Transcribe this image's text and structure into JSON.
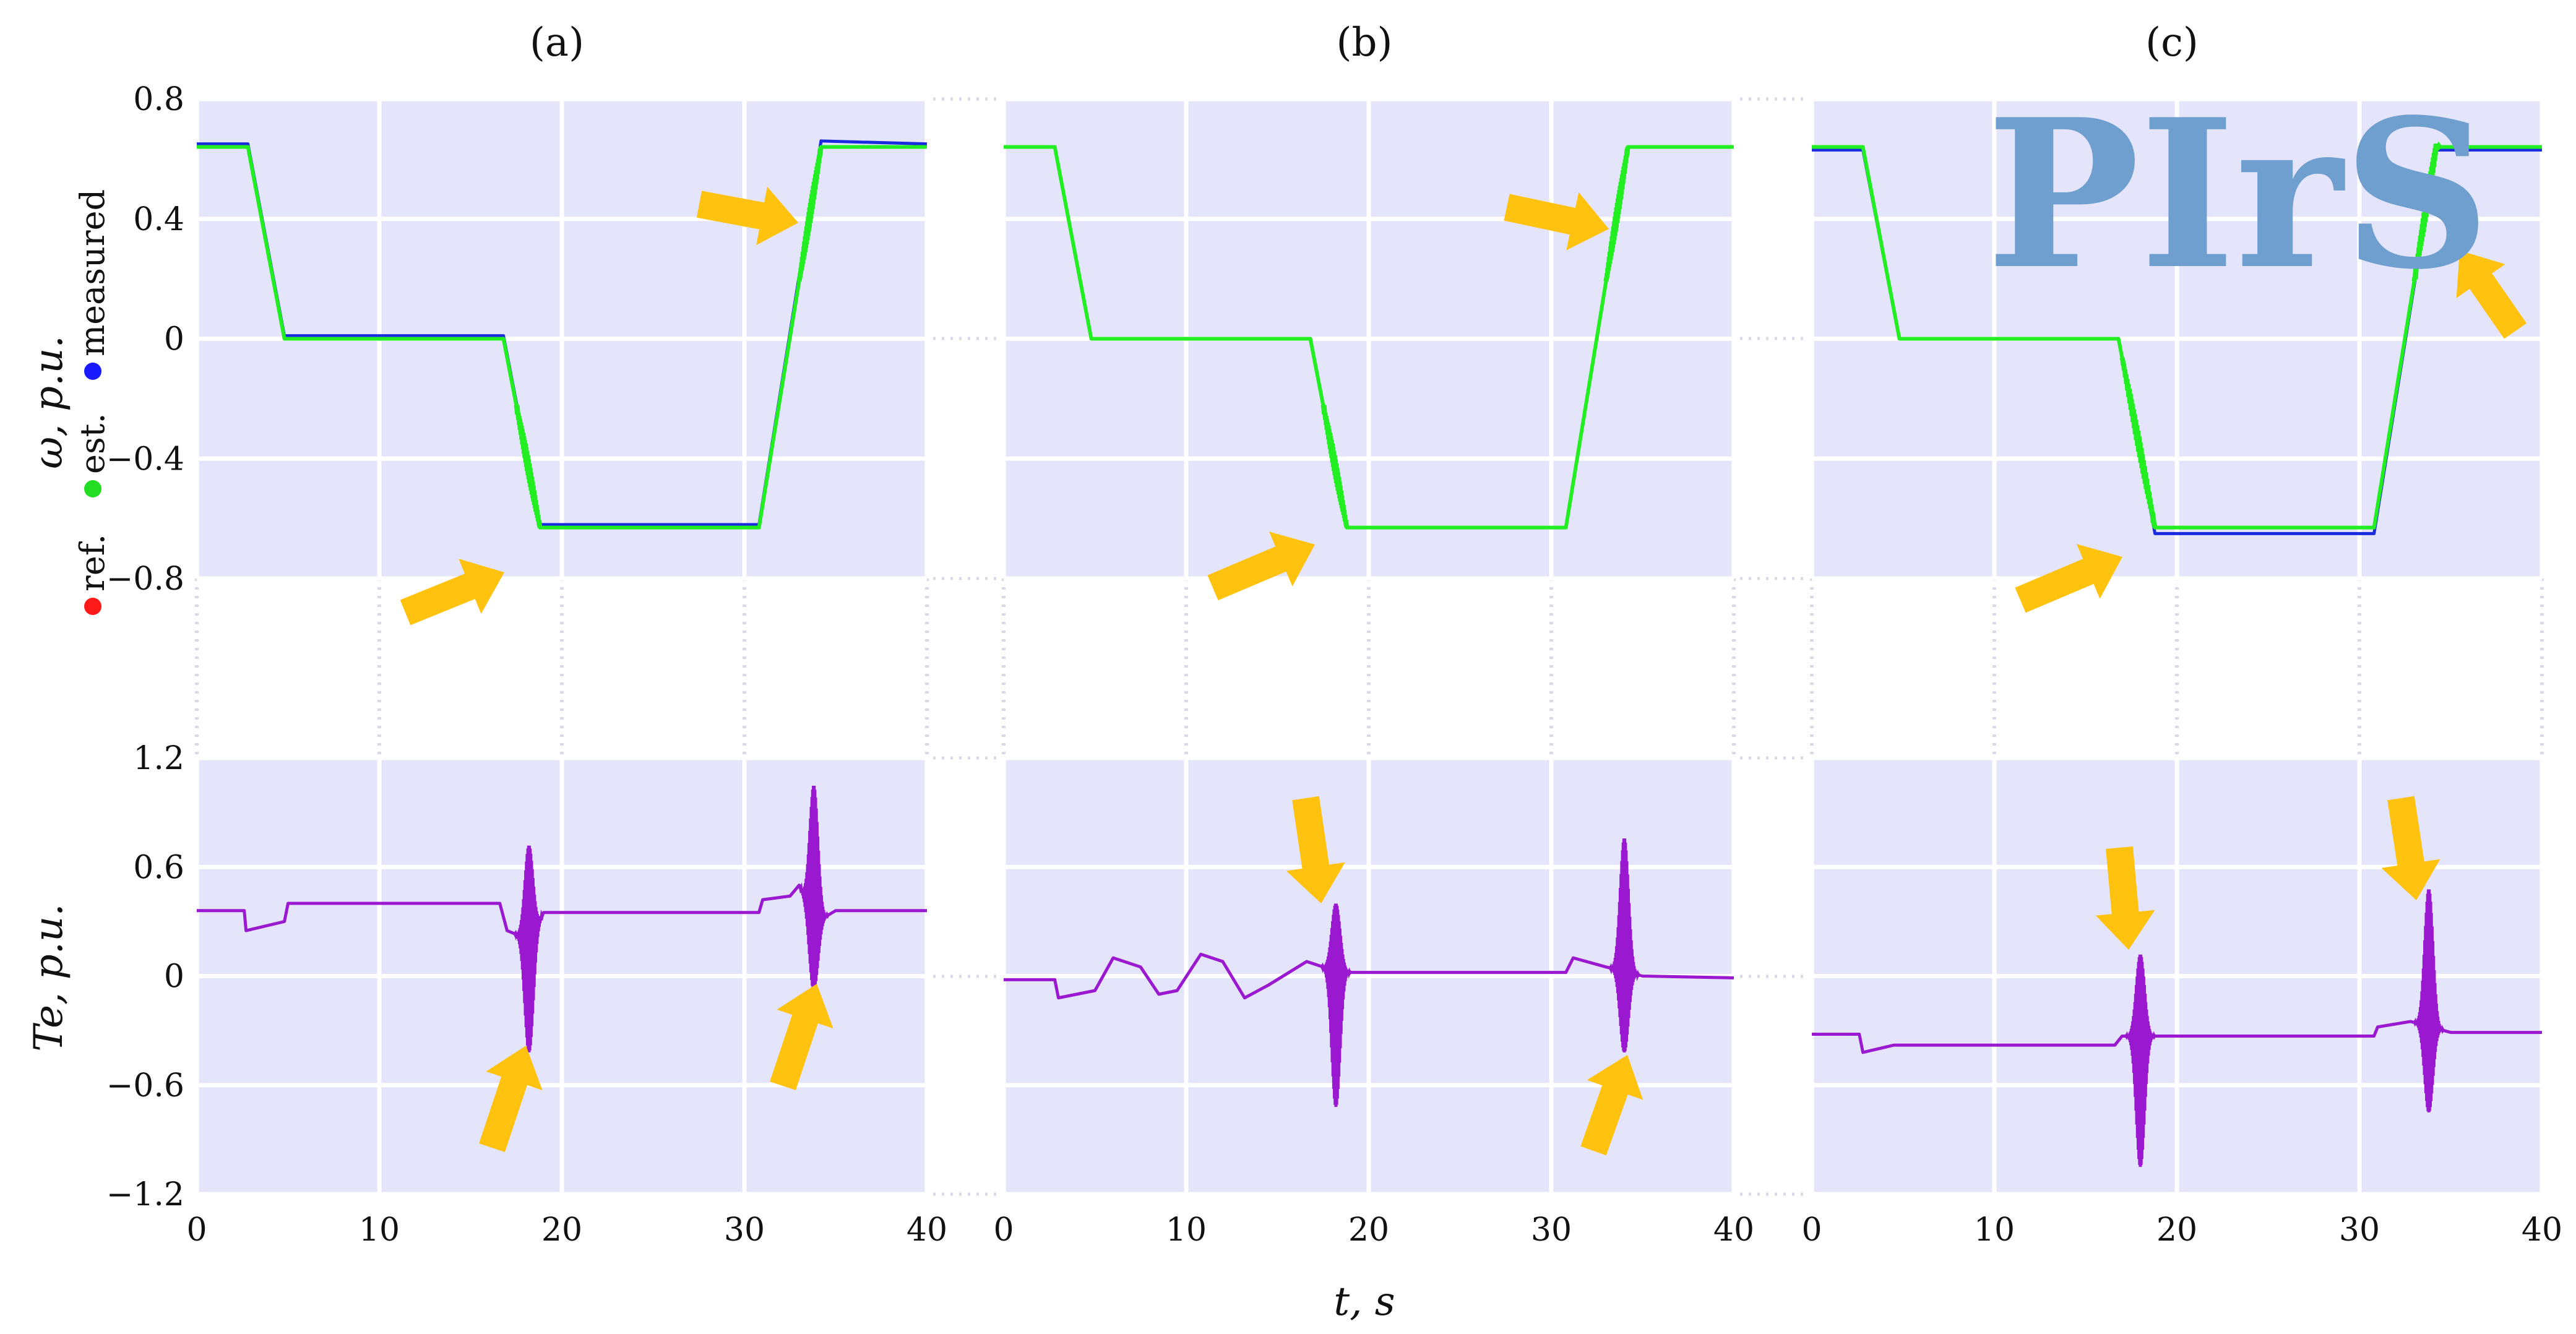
{
  "figure": {
    "panel_titles": [
      "(a)",
      "(b)",
      "(c)"
    ],
    "xlabel": "t, s",
    "omega_ylabel": "ω, p.u.",
    "torque_ylabel": "Te, p.u.",
    "watermark": "PIrS",
    "legend": [
      {
        "label": "ref.",
        "color": "#ff1a1a"
      },
      {
        "label": "est.",
        "color": "#22dd22"
      },
      {
        "label": "measured",
        "color": "#1a1aff"
      }
    ],
    "colors": {
      "plot_bg": "#e4e4fa",
      "grid": "#ffffff",
      "ref": "#ff1a1a",
      "est": "#22ee22",
      "measured": "#1a2adf",
      "torque": "#9a18d0",
      "arrow": "#ffc20e"
    }
  },
  "chart_data": [
    {
      "type": "line",
      "panel": "(a)",
      "subplot": "speed",
      "xlim": [
        0,
        40
      ],
      "ylim": [
        -0.8,
        0.8
      ],
      "xticks": [
        "0",
        "10",
        "20",
        "30",
        "40"
      ],
      "yticks": [
        "0.8",
        "0.4",
        "0",
        "-0.4",
        "-0.8"
      ],
      "series": [
        {
          "name": "ref.",
          "x": [
            0,
            2.8,
            4.8,
            16.8,
            18.8,
            30.8,
            34.2,
            40
          ],
          "y": [
            0.64,
            0.64,
            0,
            0,
            -0.63,
            -0.63,
            0.64,
            0.64
          ]
        },
        {
          "name": "est.",
          "x": [
            0,
            2.8,
            4.8,
            16.8,
            18.8,
            30.8,
            34.2,
            40
          ],
          "y": [
            0.64,
            0.64,
            0,
            0,
            -0.63,
            -0.63,
            0.64,
            0.64
          ]
        },
        {
          "name": "measured",
          "x": [
            0,
            2.8,
            4.8,
            16.8,
            18.8,
            30.8,
            34.2,
            40
          ],
          "y": [
            0.65,
            0.65,
            0.01,
            0.01,
            -0.62,
            -0.62,
            0.66,
            0.65
          ]
        }
      ],
      "oscillation_windows": [
        [
          17.5,
          18.8
        ],
        [
          33.0,
          34.2
        ]
      ]
    },
    {
      "type": "line",
      "panel": "(b)",
      "subplot": "speed",
      "xlim": [
        0,
        40
      ],
      "ylim": [
        -0.8,
        0.8
      ],
      "xticks": [
        "0",
        "10",
        "20",
        "30",
        "40"
      ],
      "yticks": [
        "0.8",
        "0.4",
        "0",
        "-0.4",
        "-0.8"
      ],
      "series": [
        {
          "name": "ref.",
          "x": [
            0,
            2.8,
            4.8,
            16.8,
            18.8,
            30.8,
            34.2,
            40
          ],
          "y": [
            0.64,
            0.64,
            0,
            0,
            -0.63,
            -0.63,
            0.64,
            0.64
          ]
        },
        {
          "name": "est.",
          "x": [
            0,
            2.8,
            4.8,
            16.8,
            18.8,
            30.8,
            34.2,
            40
          ],
          "y": [
            0.64,
            0.64,
            0,
            0,
            -0.63,
            -0.63,
            0.64,
            0.64
          ]
        },
        {
          "name": "measured",
          "x": [
            0,
            2.8,
            4.8,
            16.8,
            18.8,
            30.8,
            34.2,
            40
          ],
          "y": [
            0.64,
            0.64,
            0,
            0,
            -0.63,
            -0.63,
            0.64,
            0.64
          ]
        }
      ],
      "oscillation_windows": [
        [
          17.5,
          18.8
        ],
        [
          33.0,
          34.2
        ]
      ]
    },
    {
      "type": "line",
      "panel": "(c)",
      "subplot": "speed",
      "xlim": [
        0,
        40
      ],
      "ylim": [
        -0.8,
        0.8
      ],
      "xticks": [
        "0",
        "10",
        "20",
        "30",
        "40"
      ],
      "yticks": [
        "0.8",
        "0.4",
        "0",
        "-0.4",
        "-0.8"
      ],
      "series": [
        {
          "name": "ref.",
          "x": [
            0,
            2.8,
            4.8,
            16.8,
            18.8,
            30.8,
            34.2,
            40
          ],
          "y": [
            0.64,
            0.64,
            0,
            0,
            -0.63,
            -0.63,
            0.64,
            0.64
          ]
        },
        {
          "name": "est.",
          "x": [
            0,
            2.8,
            4.8,
            16.8,
            18.8,
            30.8,
            34.2,
            40
          ],
          "y": [
            0.64,
            0.64,
            0,
            0,
            -0.63,
            -0.63,
            0.64,
            0.64
          ]
        },
        {
          "name": "measured",
          "x": [
            0,
            2.8,
            4.8,
            16.8,
            18.8,
            30.8,
            34.2,
            40
          ],
          "y": [
            0.63,
            0.63,
            0,
            0,
            -0.65,
            -0.65,
            0.63,
            0.63
          ]
        }
      ],
      "oscillation_windows": [
        [
          17.0,
          18.8
        ],
        [
          33.0,
          34.4
        ]
      ]
    },
    {
      "type": "line",
      "panel": "(a)",
      "subplot": "torque",
      "xlim": [
        0,
        40
      ],
      "ylim": [
        -1.2,
        1.2
      ],
      "xticks": [
        "0",
        "10",
        "20",
        "30",
        "40"
      ],
      "yticks": [
        "1.2",
        "0.6",
        "0",
        "-0.6",
        "-1.2"
      ],
      "series": [
        {
          "name": "Te",
          "x": [
            0,
            2.6,
            2.7,
            4.8,
            5.0,
            16.6,
            17.0,
            18.2,
            19.0,
            30.8,
            31.0,
            32.5,
            33.0,
            34.0,
            35.0,
            40
          ],
          "y": [
            0.36,
            0.36,
            0.25,
            0.3,
            0.4,
            0.4,
            0.25,
            0.2,
            0.35,
            0.35,
            0.42,
            0.44,
            0.5,
            0.3,
            0.36,
            0.36
          ]
        }
      ],
      "bursts": [
        {
          "t": 18.2,
          "max": 0.72,
          "min": -0.42
        },
        {
          "t": 33.8,
          "max": 1.05,
          "min": -0.08
        }
      ]
    },
    {
      "type": "line",
      "panel": "(b)",
      "subplot": "torque",
      "xlim": [
        0,
        40
      ],
      "ylim": [
        -1.2,
        1.2
      ],
      "xticks": [
        "0",
        "10",
        "20",
        "30",
        "40"
      ],
      "yticks": [
        "1.2",
        "0.6",
        "0",
        "-0.6",
        "-1.2"
      ],
      "series": [
        {
          "name": "Te",
          "x": [
            0,
            2.8,
            3.0,
            5.0,
            6.0,
            7.5,
            8.5,
            9.5,
            10.8,
            12.0,
            13.2,
            14.5,
            16.6,
            17.5,
            19.0,
            30.8,
            31.2,
            33.0,
            35.0,
            40
          ],
          "y": [
            -0.02,
            -0.02,
            -0.12,
            -0.08,
            0.1,
            0.05,
            -0.1,
            -0.08,
            0.12,
            0.08,
            -0.12,
            -0.05,
            0.08,
            0.05,
            0.02,
            0.02,
            0.1,
            0.05,
            0.0,
            -0.01
          ]
        }
      ],
      "bursts": [
        {
          "t": 18.2,
          "max": 0.4,
          "min": -0.72
        },
        {
          "t": 34.0,
          "max": 0.76,
          "min": -0.42
        }
      ]
    },
    {
      "type": "line",
      "panel": "(c)",
      "subplot": "torque",
      "xlim": [
        0,
        40
      ],
      "ylim": [
        -1.2,
        1.2
      ],
      "xticks": [
        "0",
        "10",
        "20",
        "30",
        "40"
      ],
      "yticks": [
        "1.2",
        "0.6",
        "0",
        "-0.6",
        "-1.2"
      ],
      "series": [
        {
          "name": "Te",
          "x": [
            0,
            2.6,
            2.8,
            4.5,
            16.6,
            17.0,
            19.0,
            30.8,
            31.0,
            32.8,
            35.0,
            40
          ],
          "y": [
            -0.32,
            -0.32,
            -0.42,
            -0.38,
            -0.38,
            -0.33,
            -0.33,
            -0.33,
            -0.28,
            -0.25,
            -0.31,
            -0.31
          ]
        }
      ],
      "bursts": [
        {
          "t": 18.0,
          "max": 0.12,
          "min": -1.05
        },
        {
          "t": 33.8,
          "max": 0.48,
          "min": -0.75
        }
      ]
    }
  ]
}
